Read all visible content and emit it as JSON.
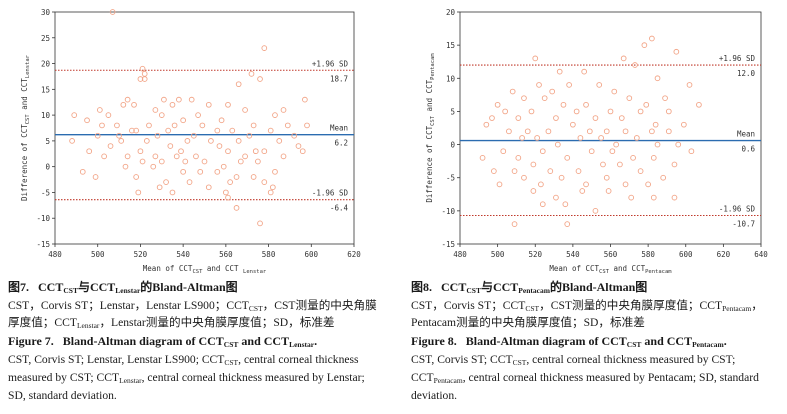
{
  "colors": {
    "point": "#f2a588",
    "limit_line": "#c0392b",
    "mean_line": "#2b6cb0",
    "axis": "#333333"
  },
  "figure7": {
    "caption_zh": {
      "label": "图7.",
      "t1": "CCT",
      "s1": "CST",
      "t2": "与CCT",
      "s2": "Lenstar",
      "t3": "的Bland-Altman图",
      "line1_a": "CST，Corvis ST；Lenstar，Lenstar LS900；CCT",
      "line1_sub": "CST",
      "line1_b": "，CST测量的中央角膜",
      "line2_a": "厚度值；CCT",
      "line2_sub": "Lenstar",
      "line2_b": "，Lenstar测量的中央角膜厚度值；SD，标准差"
    },
    "caption_en": {
      "label": "Figure 7.",
      "t1": "Bland-Altman diagram of CCT",
      "s1": "CST",
      "t2": "and CCT",
      "s2": "Lenstar",
      "t3": ".",
      "line1_a": "CST, Corvis ST; Lenstar, Lenstar LS900; CCT",
      "line1_sub": "CST",
      "line1_b": ", central corneal thickness",
      "line2_a": "measured by CST; CCT",
      "line2_sub": "Lenstar",
      "line2_b": ", central corneal thickness measured by Lenstar;",
      "line3": "SD, standard deviation."
    }
  },
  "figure8": {
    "caption_zh": {
      "label": "图8.",
      "t1": "CCT",
      "s1": "CST",
      "t2": "与CCT",
      "s2": "Pentacam",
      "t3": "的Bland-Altman图",
      "line1_a": "CST，Corvis ST；CCT",
      "line1_sub": "CST",
      "line1_b": "，CST测量的中央角膜厚度值；CCT",
      "line1_sub2": "Pentacam",
      "line1_c": "，",
      "line2": "Pentacam测量的中央角膜厚度值；SD，标准差"
    },
    "caption_en": {
      "label": "Figure 8.",
      "t1": "Bland-Altman diagram of CCT",
      "s1": "CST",
      "t2": "and CCT",
      "s2": "Pentacam",
      "t3": ".",
      "line1_a": "CST, Corvis ST; CCT",
      "line1_sub": "CST",
      "line1_b": ", central corneal thickness measured by CST;",
      "line2_a": "CCT",
      "line2_sub": "Pentacam",
      "line2_b": ", central corneal thickness measured by Pentacam; SD, standard",
      "line3": "deviation."
    }
  },
  "chart_data": [
    {
      "type": "scatter",
      "title": "",
      "xlabel": "Mean of CCT_CST and CCT_Lenstar",
      "ylabel": "Difference of CCT_CST and CCT_Lenstar",
      "xlabel_parts": [
        "Mean of CCT",
        "CST",
        " and CCT ",
        "Lenstar"
      ],
      "ylabel_parts": [
        "Difference of CCT",
        "CST",
        " and CCT",
        "Lenstar"
      ],
      "xlim": [
        480,
        620
      ],
      "ylim": [
        -15,
        30
      ],
      "xticks": [
        480,
        500,
        520,
        540,
        560,
        580,
        600,
        620
      ],
      "yticks": [
        -15,
        -10,
        -5,
        0,
        5,
        10,
        15,
        20,
        25,
        30
      ],
      "grid": false,
      "reference_lines": [
        {
          "name": "upper",
          "label_top": "+1.96 SD",
          "label_bottom": "18.7",
          "value": 18.7,
          "style": "dotted"
        },
        {
          "name": "mean",
          "label_top": "Mean",
          "label_bottom": "6.2",
          "value": 6.2,
          "style": "solid"
        },
        {
          "name": "lower",
          "label_top": "-1.96 SD",
          "label_bottom": "-6.4",
          "value": -6.4,
          "style": "dotted"
        }
      ],
      "points": [
        [
          507,
          30
        ],
        [
          578,
          23
        ],
        [
          521,
          19
        ],
        [
          522,
          17
        ],
        [
          522,
          18
        ],
        [
          572,
          18
        ],
        [
          566,
          16
        ],
        [
          576,
          17
        ],
        [
          520,
          17
        ],
        [
          538,
          13
        ],
        [
          514,
          13
        ],
        [
          517,
          12
        ],
        [
          544,
          13
        ],
        [
          535,
          12
        ],
        [
          512,
          12
        ],
        [
          531,
          13
        ],
        [
          552,
          12
        ],
        [
          561,
          12
        ],
        [
          587,
          11
        ],
        [
          597,
          13
        ],
        [
          489,
          10
        ],
        [
          495,
          9
        ],
        [
          501,
          11
        ],
        [
          505,
          10
        ],
        [
          527,
          11
        ],
        [
          547,
          10
        ],
        [
          558,
          9
        ],
        [
          569,
          11
        ],
        [
          583,
          10
        ],
        [
          530,
          10
        ],
        [
          540,
          9
        ],
        [
          502,
          8
        ],
        [
          509,
          8
        ],
        [
          516,
          7
        ],
        [
          524,
          8
        ],
        [
          533,
          7
        ],
        [
          549,
          8
        ],
        [
          556,
          7
        ],
        [
          563,
          7
        ],
        [
          573,
          8
        ],
        [
          581,
          7
        ],
        [
          589,
          8
        ],
        [
          598,
          8
        ],
        [
          510,
          6
        ],
        [
          518,
          7
        ],
        [
          528,
          6
        ],
        [
          536,
          8
        ],
        [
          545,
          6
        ],
        [
          553,
          5
        ],
        [
          571,
          6
        ],
        [
          592,
          6
        ],
        [
          500,
          6
        ],
        [
          488,
          5
        ],
        [
          511,
          5
        ],
        [
          523,
          5
        ],
        [
          534,
          4
        ],
        [
          542,
          5
        ],
        [
          557,
          4
        ],
        [
          566,
          5
        ],
        [
          574,
          3
        ],
        [
          585,
          5
        ],
        [
          594,
          4
        ],
        [
          496,
          3
        ],
        [
          506,
          4
        ],
        [
          514,
          2
        ],
        [
          520,
          3
        ],
        [
          527,
          2
        ],
        [
          539,
          3
        ],
        [
          546,
          2
        ],
        [
          561,
          3
        ],
        [
          569,
          2
        ],
        [
          578,
          3
        ],
        [
          587,
          2
        ],
        [
          596,
          3
        ],
        [
          503,
          2
        ],
        [
          521,
          1
        ],
        [
          530,
          1
        ],
        [
          541,
          1
        ],
        [
          550,
          1
        ],
        [
          559,
          0
        ],
        [
          567,
          1
        ],
        [
          575,
          1
        ],
        [
          537,
          2
        ],
        [
          493,
          -1
        ],
        [
          513,
          0
        ],
        [
          526,
          0
        ],
        [
          540,
          -1
        ],
        [
          548,
          -1
        ],
        [
          556,
          -1
        ],
        [
          565,
          -2
        ],
        [
          573,
          -2
        ],
        [
          583,
          -1
        ],
        [
          499,
          -2
        ],
        [
          518,
          -2
        ],
        [
          532,
          -3
        ],
        [
          543,
          -3
        ],
        [
          552,
          -4
        ],
        [
          562,
          -3
        ],
        [
          578,
          -3
        ],
        [
          529,
          -4
        ],
        [
          519,
          -5
        ],
        [
          535,
          -5
        ],
        [
          560,
          -5
        ],
        [
          561,
          -6
        ],
        [
          581,
          -5
        ],
        [
          582,
          -4
        ],
        [
          565,
          -8
        ],
        [
          576,
          -11
        ]
      ]
    },
    {
      "type": "scatter",
      "title": "",
      "xlabel": "Mean of CCT_CST and CCT_Pentacam",
      "ylabel": "Difference of CCT_CST and CCT_Pentacam",
      "xlabel_parts": [
        "Mean of CCT",
        "CST",
        " and CCT",
        "Pentacam"
      ],
      "ylabel_parts": [
        "Difference of CCT",
        "CST",
        " and CCT",
        "Pentacam"
      ],
      "xlim": [
        480,
        640
      ],
      "ylim": [
        -15,
        20
      ],
      "xticks": [
        480,
        500,
        520,
        540,
        560,
        580,
        600,
        620,
        640
      ],
      "yticks": [
        -15,
        -10,
        -5,
        0,
        5,
        10,
        15,
        20
      ],
      "grid": false,
      "reference_lines": [
        {
          "name": "upper",
          "label_top": "+1.96 SD",
          "label_bottom": "12.0",
          "value": 12.0,
          "style": "dotted"
        },
        {
          "name": "mean",
          "label_top": "Mean",
          "label_bottom": "0.6",
          "value": 0.6,
          "style": "solid"
        },
        {
          "name": "lower",
          "label_top": "-1.96 SD",
          "label_bottom": "-10.7",
          "value": -10.7,
          "style": "dotted"
        }
      ],
      "points": [
        [
          582,
          16
        ],
        [
          578,
          15
        ],
        [
          595,
          14
        ],
        [
          520,
          13
        ],
        [
          567,
          13
        ],
        [
          585,
          10
        ],
        [
          573,
          12
        ],
        [
          602,
          9
        ],
        [
          533,
          11
        ],
        [
          546,
          11
        ],
        [
          508,
          8
        ],
        [
          522,
          9
        ],
        [
          529,
          8
        ],
        [
          538,
          9
        ],
        [
          554,
          9
        ],
        [
          562,
          8
        ],
        [
          589,
          7
        ],
        [
          607,
          6
        ],
        [
          500,
          6
        ],
        [
          504,
          5
        ],
        [
          514,
          7
        ],
        [
          525,
          7
        ],
        [
          535,
          6
        ],
        [
          547,
          6
        ],
        [
          560,
          5
        ],
        [
          570,
          7
        ],
        [
          579,
          6
        ],
        [
          591,
          5
        ],
        [
          497,
          4
        ],
        [
          511,
          4
        ],
        [
          518,
          5
        ],
        [
          531,
          4
        ],
        [
          542,
          5
        ],
        [
          552,
          4
        ],
        [
          566,
          4
        ],
        [
          576,
          5
        ],
        [
          584,
          3
        ],
        [
          599,
          3
        ],
        [
          494,
          3
        ],
        [
          506,
          2
        ],
        [
          516,
          2
        ],
        [
          527,
          2
        ],
        [
          540,
          3
        ],
        [
          549,
          2
        ],
        [
          558,
          2
        ],
        [
          568,
          2
        ],
        [
          582,
          2
        ],
        [
          591,
          2
        ],
        [
          513,
          1
        ],
        [
          521,
          1
        ],
        [
          532,
          0
        ],
        [
          544,
          1
        ],
        [
          555,
          1
        ],
        [
          563,
          0
        ],
        [
          574,
          1
        ],
        [
          585,
          0
        ],
        [
          596,
          0
        ],
        [
          492,
          -2
        ],
        [
          503,
          -1
        ],
        [
          511,
          -2
        ],
        [
          524,
          -1
        ],
        [
          537,
          -2
        ],
        [
          550,
          -1
        ],
        [
          561,
          -1
        ],
        [
          572,
          -2
        ],
        [
          583,
          -2
        ],
        [
          603,
          -1
        ],
        [
          498,
          -4
        ],
        [
          509,
          -4
        ],
        [
          519,
          -3
        ],
        [
          528,
          -4
        ],
        [
          543,
          -4
        ],
        [
          556,
          -3
        ],
        [
          565,
          -3
        ],
        [
          576,
          -4
        ],
        [
          594,
          -3
        ],
        [
          501,
          -6
        ],
        [
          514,
          -5
        ],
        [
          523,
          -6
        ],
        [
          534,
          -5
        ],
        [
          547,
          -6
        ],
        [
          558,
          -5
        ],
        [
          568,
          -6
        ],
        [
          580,
          -6
        ],
        [
          588,
          -5
        ],
        [
          519,
          -7
        ],
        [
          531,
          -8
        ],
        [
          545,
          -7
        ],
        [
          559,
          -7
        ],
        [
          571,
          -8
        ],
        [
          583,
          -8
        ],
        [
          594,
          -8
        ],
        [
          524,
          -9
        ],
        [
          536,
          -9
        ],
        [
          509,
          -12
        ],
        [
          537,
          -12
        ],
        [
          552,
          -10
        ]
      ]
    }
  ]
}
